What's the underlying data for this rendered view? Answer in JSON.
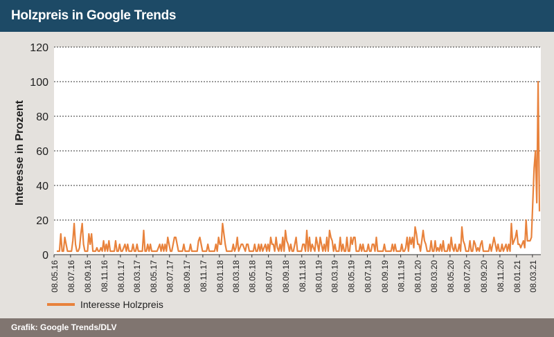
{
  "header": {
    "title": "Holzpreis in Google Trends"
  },
  "footer": {
    "source": "Grafik: Google Trends/DLV"
  },
  "chart_data": {
    "type": "line",
    "title": "Holzpreis in Google Trends",
    "ylabel": "Interesse in Prozent",
    "xlabel": "",
    "ylim": [
      0,
      120
    ],
    "yticks": [
      0,
      20,
      40,
      60,
      80,
      100,
      120
    ],
    "grid": true,
    "legend": "bottom-left",
    "colors": {
      "line": "#e8823c",
      "grid": "#333333"
    },
    "x_start": "08.05.16",
    "x_end": "08.04.21",
    "x_tick_labels": [
      "08.05.16",
      "08.07.16",
      "08.09.16",
      "08.11.16",
      "08.01.17",
      "08.03.17",
      "08.05.17",
      "08.07.17",
      "08.09.17",
      "08.11.17",
      "08.01.18",
      "08.03.18",
      "08.05.18",
      "08.07.18",
      "08.09.18",
      "08.11.18",
      "08.01.19",
      "08.03.19",
      "08.05.19",
      "08.07.19",
      "08.09.19",
      "08.11.19",
      "08.01.20",
      "08.03.20",
      "08.05.20",
      "08.07.20",
      "08.09.20",
      "08.11.20",
      "08.01.21",
      "08.03.21"
    ],
    "series": [
      {
        "name": "Interesse Holzpreis",
        "values": [
          2,
          2,
          2,
          12,
          2,
          2,
          10,
          6,
          2,
          2,
          2,
          2,
          8,
          18,
          6,
          2,
          2,
          4,
          12,
          18,
          6,
          2,
          2,
          2,
          12,
          6,
          12,
          2,
          2,
          2,
          4,
          2,
          2,
          4,
          2,
          8,
          2,
          6,
          2,
          8,
          2,
          2,
          2,
          2,
          8,
          2,
          2,
          6,
          2,
          2,
          4,
          6,
          2,
          6,
          2,
          2,
          2,
          6,
          2,
          2,
          6,
          2,
          2,
          2,
          2,
          14,
          2,
          2,
          6,
          2,
          6,
          2,
          2,
          2,
          2,
          2,
          4,
          6,
          2,
          6,
          2,
          6,
          2,
          10,
          6,
          2,
          2,
          6,
          10,
          10,
          6,
          2,
          2,
          2,
          2,
          6,
          2,
          2,
          2,
          2,
          6,
          2,
          2,
          2,
          2,
          2,
          8,
          10,
          6,
          2,
          2,
          2,
          2,
          6,
          2,
          2,
          2,
          2,
          2,
          6,
          2,
          10,
          6,
          6,
          18,
          12,
          6,
          2,
          2,
          2,
          2,
          2,
          6,
          2,
          4,
          10,
          2,
          4,
          6,
          6,
          4,
          2,
          6,
          6,
          2,
          2,
          2,
          2,
          6,
          2,
          2,
          6,
          2,
          6,
          2,
          4,
          6,
          2,
          6,
          2,
          10,
          6,
          6,
          2,
          10,
          4,
          2,
          6,
          2,
          10,
          2,
          14,
          8,
          6,
          2,
          6,
          2,
          2,
          6,
          10,
          2,
          2,
          2,
          2,
          6,
          6,
          2,
          14,
          2,
          10,
          2,
          6,
          4,
          2,
          10,
          6,
          2,
          10,
          6,
          2,
          6,
          2,
          10,
          2,
          14,
          10,
          8,
          2,
          6,
          2,
          2,
          2,
          10,
          2,
          6,
          2,
          2,
          10,
          2,
          2,
          10,
          6,
          10,
          10,
          2,
          2,
          2,
          6,
          2,
          6,
          2,
          2,
          2,
          6,
          2,
          2,
          6,
          6,
          2,
          10,
          2,
          2,
          2,
          2,
          2,
          6,
          2,
          2,
          2,
          2,
          2,
          6,
          2,
          6,
          2,
          2,
          2,
          2,
          6,
          2,
          2,
          4,
          10,
          2,
          10,
          6,
          10,
          4,
          16,
          12,
          6,
          6,
          2,
          8,
          14,
          8,
          6,
          2,
          2,
          2,
          8,
          2,
          2,
          8,
          2,
          4,
          2,
          6,
          2,
          8,
          2,
          2,
          2,
          6,
          2,
          10,
          4,
          2,
          6,
          2,
          2,
          6,
          2,
          16,
          8,
          6,
          2,
          2,
          2,
          8,
          2,
          2,
          8,
          6,
          2,
          4,
          2,
          6,
          8,
          2,
          2,
          2,
          2,
          2,
          6,
          2,
          6,
          10,
          6,
          2,
          6,
          2,
          2,
          6,
          2,
          4,
          6,
          2,
          6,
          2,
          18,
          6,
          8,
          10,
          14,
          6,
          6,
          4,
          6,
          8,
          4,
          20,
          8,
          8,
          8,
          10,
          30,
          50,
          60,
          30,
          100,
          25
        ]
      }
    ]
  }
}
